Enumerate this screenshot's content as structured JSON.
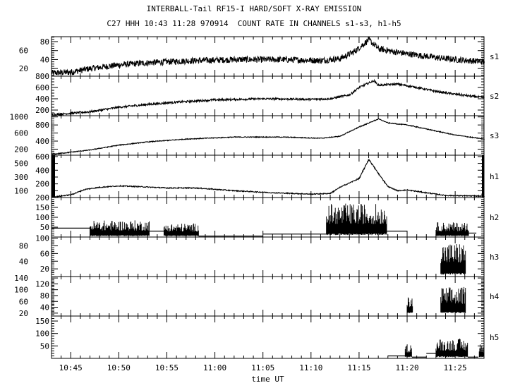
{
  "chart_data": {
    "type": "line",
    "title": "INTERBALL-Tail RF15-I HARD/SOFT X-RAY EMISSION",
    "subtitle": "C27 HHH 10:43 11:28 970914  COUNT RATE IN CHANNELS s1-s3, h1-h5",
    "xlabel": "time UT",
    "x_unit": "minutes after 10:00 UT",
    "xlim": [
      43,
      88
    ],
    "x_ticks": [
      {
        "t": 45,
        "label": "10:45"
      },
      {
        "t": 50,
        "label": "10:50"
      },
      {
        "t": 55,
        "label": "10:55"
      },
      {
        "t": 60,
        "label": "11:00"
      },
      {
        "t": 65,
        "label": "11:05"
      },
      {
        "t": 70,
        "label": "11:10"
      },
      {
        "t": 75,
        "label": "11:15"
      },
      {
        "t": 80,
        "label": "11:20"
      },
      {
        "t": 85,
        "label": "11:25"
      }
    ],
    "panels": [
      {
        "name": "s1",
        "ylim": [
          3,
          91
        ],
        "yticks": [
          20,
          40,
          60,
          80
        ],
        "minor": 5,
        "noise": 7,
        "curve": [
          [
            43,
            10
          ],
          [
            45,
            12
          ],
          [
            47,
            20
          ],
          [
            50,
            28
          ],
          [
            53,
            33
          ],
          [
            57,
            37
          ],
          [
            62,
            40
          ],
          [
            67,
            40
          ],
          [
            71,
            38
          ],
          [
            73,
            42
          ],
          [
            74.5,
            58
          ],
          [
            76,
            84
          ],
          [
            77,
            64
          ],
          [
            79,
            56
          ],
          [
            81,
            50
          ],
          [
            84,
            42
          ],
          [
            88,
            35
          ]
        ]
      },
      {
        "name": "s2",
        "ylim": [
          100,
          800
        ],
        "yticks": [
          200,
          400,
          600,
          800
        ],
        "minor": 50,
        "noise": 18,
        "curve": [
          [
            43,
            115
          ],
          [
            47,
            170
          ],
          [
            50,
            250
          ],
          [
            53,
            300
          ],
          [
            56,
            340
          ],
          [
            60,
            380
          ],
          [
            65,
            400
          ],
          [
            70,
            390
          ],
          [
            72,
            400
          ],
          [
            74,
            470
          ],
          [
            75,
            600
          ],
          [
            76.5,
            720
          ],
          [
            77,
            640
          ],
          [
            79,
            660
          ],
          [
            81,
            600
          ],
          [
            83,
            530
          ],
          [
            85,
            480
          ],
          [
            88,
            420
          ]
        ]
      },
      {
        "name": "s3",
        "ylim": [
          50,
          1030
        ],
        "yticks": [
          200,
          400,
          600,
          800,
          1000
        ],
        "minor": 50,
        "noise": 10,
        "curve": [
          [
            43,
            70
          ],
          [
            47,
            180
          ],
          [
            50,
            300
          ],
          [
            53,
            380
          ],
          [
            57,
            450
          ],
          [
            62,
            500
          ],
          [
            67,
            500
          ],
          [
            71,
            470
          ],
          [
            73,
            520
          ],
          [
            75,
            750
          ],
          [
            77,
            950
          ],
          [
            78,
            850
          ],
          [
            80,
            800
          ],
          [
            82,
            700
          ],
          [
            85,
            550
          ],
          [
            88,
            450
          ]
        ]
      },
      {
        "name": "h1",
        "ylim": [
          0,
          620
        ],
        "yticks": [
          100,
          200,
          300,
          400,
          500,
          600
        ],
        "minor": 50,
        "noise": 7,
        "curve": [
          [
            43,
            5
          ],
          [
            45,
            40
          ],
          [
            46.5,
            120
          ],
          [
            48,
            150
          ],
          [
            50,
            170
          ],
          [
            52,
            160
          ],
          [
            55,
            140
          ],
          [
            58,
            140
          ],
          [
            62,
            100
          ],
          [
            66,
            70
          ],
          [
            70,
            50
          ],
          [
            72,
            60
          ],
          [
            73,
            150
          ],
          [
            75,
            280
          ],
          [
            76,
            560
          ],
          [
            77,
            350
          ],
          [
            78,
            160
          ],
          [
            79,
            100
          ],
          [
            80,
            110
          ],
          [
            82,
            70
          ],
          [
            84,
            30
          ],
          [
            88,
            20
          ]
        ]
      },
      {
        "name": "h2",
        "ylim": [
          0,
          200
        ],
        "yticks": [
          50,
          100,
          150,
          200
        ],
        "minor": 10,
        "steps": [
          [
            43,
            47,
            45
          ],
          [
            53.2,
            55,
            30
          ],
          [
            55,
            56,
            20
          ],
          [
            58.3,
            65,
            5
          ],
          [
            65,
            71.6,
            15
          ],
          [
            77.9,
            80,
            30
          ],
          [
            86.4,
            87.2,
            20
          ]
        ],
        "bursts": [
          [
            47,
            53.2,
            5,
            85
          ],
          [
            54.7,
            58.3,
            5,
            70
          ],
          [
            71.6,
            77.9,
            10,
            170
          ],
          [
            83,
            86.4,
            5,
            75
          ]
        ]
      },
      {
        "name": "h3",
        "ylim": [
          0,
          103
        ],
        "yticks": [
          20,
          40,
          60,
          80,
          100
        ],
        "minor": 5,
        "steps": [],
        "bursts": [
          [
            83.5,
            86.1,
            5,
            90
          ]
        ]
      },
      {
        "name": "h4",
        "ylim": [
          10,
          145
        ],
        "yticks": [
          20,
          40,
          60,
          80,
          100,
          120,
          140
        ],
        "minor": 5,
        "steps": [],
        "bursts": [
          [
            80,
            80.6,
            20,
            75
          ],
          [
            83.5,
            86.1,
            20,
            110
          ]
        ]
      },
      {
        "name": "h5",
        "ylim": [
          0,
          170
        ],
        "yticks": [
          50,
          100,
          150
        ],
        "minor": 10,
        "steps": [
          [
            78,
            79.8,
            10
          ],
          [
            80.5,
            82,
            5
          ],
          [
            82,
            83,
            20
          ],
          [
            86.3,
            87.4,
            5
          ]
        ],
        "bursts": [
          [
            79.8,
            80.5,
            5,
            60
          ],
          [
            83,
            86.3,
            5,
            80
          ],
          [
            87.5,
            88,
            5,
            60
          ]
        ]
      }
    ]
  }
}
